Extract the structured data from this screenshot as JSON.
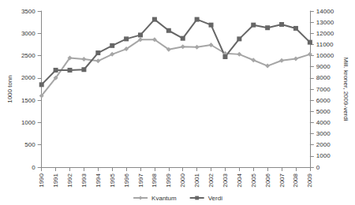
{
  "chart_data": {
    "type": "line",
    "y_label": "1000 tonn",
    "y2_label": "Mill. kroner, 2009-verdi",
    "categories": [
      "1990",
      "1991",
      "1992",
      "1993",
      "1994",
      "1995",
      "1996",
      "1997",
      "1998",
      "1999",
      "2000",
      "2001",
      "2002",
      "2003",
      "2004",
      "2005",
      "2006",
      "2007",
      "2008",
      "2009"
    ],
    "series": [
      {
        "name": "Kvantum",
        "color": "#a6a6a6",
        "marker": "diamond",
        "line_style": "solid",
        "axis": "y",
        "values": [
          1600,
          2000,
          2450,
          2420,
          2380,
          2530,
          2650,
          2860,
          2860,
          2640,
          2700,
          2690,
          2740,
          2550,
          2530,
          2400,
          2270,
          2390,
          2430,
          2530
        ]
      },
      {
        "name": "Verdi",
        "color": "#666666",
        "marker": "square",
        "line_style": "solid",
        "axis": "y2",
        "values": [
          7400,
          8700,
          8700,
          8750,
          10250,
          10900,
          11500,
          11850,
          13250,
          12250,
          11550,
          13250,
          12750,
          9900,
          11500,
          12750,
          12500,
          12800,
          12450,
          11200
        ]
      }
    ],
    "ylim": [
      0,
      3500
    ],
    "yticks": [
      0,
      500,
      1000,
      1500,
      2000,
      2500,
      3000,
      3500
    ],
    "y2lim": [
      0,
      14000
    ],
    "y2ticks": [
      0,
      1000,
      2000,
      3000,
      4000,
      5000,
      6000,
      7000,
      8000,
      9000,
      10000,
      11000,
      12000,
      13000,
      14000
    ],
    "grid": false,
    "legend": "bottom"
  }
}
